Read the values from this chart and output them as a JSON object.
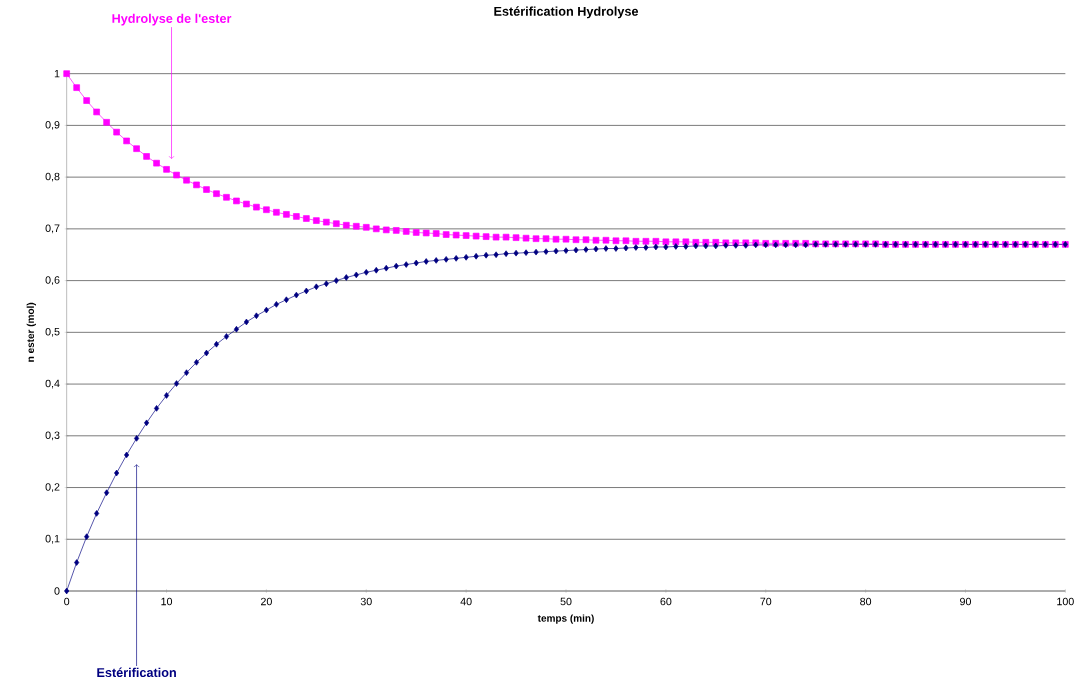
{
  "chart_data": {
    "type": "line",
    "title": "Estérification Hydrolyse",
    "xlabel": "temps (min)",
    "ylabel": "n ester (mol)",
    "x": [
      0,
      1,
      2,
      3,
      4,
      5,
      6,
      7,
      8,
      9,
      10,
      11,
      12,
      13,
      14,
      15,
      16,
      17,
      18,
      19,
      20,
      21,
      22,
      23,
      24,
      25,
      26,
      27,
      28,
      29,
      30,
      31,
      32,
      33,
      34,
      35,
      36,
      37,
      38,
      39,
      40,
      41,
      42,
      43,
      44,
      45,
      46,
      47,
      48,
      49,
      50,
      51,
      52,
      53,
      54,
      55,
      56,
      57,
      58,
      59,
      60,
      61,
      62,
      63,
      64,
      65,
      66,
      67,
      68,
      69,
      70,
      71,
      72,
      73,
      74,
      75,
      76,
      77,
      78,
      79,
      80,
      81,
      82,
      83,
      84,
      85,
      86,
      87,
      88,
      89,
      90,
      91,
      92,
      93,
      94,
      95,
      96,
      97,
      98,
      99,
      100
    ],
    "series": [
      {
        "name": "Hydrolyse de l'ester",
        "color": "#ff00ff",
        "marker": "square",
        "values": [
          1,
          0.973,
          0.948,
          0.926,
          0.906,
          0.887,
          0.87,
          0.855,
          0.84,
          0.827,
          0.815,
          0.804,
          0.794,
          0.785,
          0.776,
          0.768,
          0.761,
          0.754,
          0.748,
          0.742,
          0.737,
          0.732,
          0.728,
          0.724,
          0.72,
          0.716,
          0.713,
          0.71,
          0.707,
          0.705,
          0.703,
          0.7,
          0.698,
          0.697,
          0.695,
          0.693,
          0.692,
          0.691,
          0.689,
          0.688,
          0.687,
          0.686,
          0.685,
          0.684,
          0.684,
          0.683,
          0.682,
          0.681,
          0.681,
          0.68,
          0.68,
          0.679,
          0.679,
          0.678,
          0.678,
          0.677,
          0.677,
          0.676,
          0.676,
          0.676,
          0.675,
          0.675,
          0.675,
          0.674,
          0.674,
          0.674,
          0.673,
          0.673,
          0.673,
          0.673,
          0.672,
          0.672,
          0.672,
          0.672,
          0.672,
          0.671,
          0.671,
          0.671,
          0.671,
          0.671,
          0.671,
          0.671,
          0.67,
          0.67,
          0.67,
          0.67,
          0.67,
          0.67,
          0.67,
          0.67,
          0.67,
          0.67,
          0.67,
          0.67,
          0.67,
          0.67,
          0.67,
          0.67,
          0.67,
          0.67,
          0.67
        ]
      },
      {
        "name": "Estérification",
        "color": "#000080",
        "marker": "diamond",
        "values": [
          0,
          0.055,
          0.105,
          0.15,
          0.19,
          0.228,
          0.263,
          0.295,
          0.325,
          0.353,
          0.378,
          0.401,
          0.422,
          0.442,
          0.46,
          0.477,
          0.492,
          0.506,
          0.52,
          0.532,
          0.543,
          0.554,
          0.563,
          0.572,
          0.58,
          0.588,
          0.594,
          0.6,
          0.606,
          0.611,
          0.616,
          0.62,
          0.624,
          0.628,
          0.631,
          0.634,
          0.637,
          0.639,
          0.641,
          0.643,
          0.645,
          0.647,
          0.649,
          0.65,
          0.652,
          0.653,
          0.654,
          0.655,
          0.656,
          0.657,
          0.658,
          0.659,
          0.66,
          0.661,
          0.662,
          0.662,
          0.663,
          0.664,
          0.664,
          0.665,
          0.665,
          0.666,
          0.666,
          0.667,
          0.667,
          0.667,
          0.668,
          0.668,
          0.668,
          0.669,
          0.669,
          0.669,
          0.669,
          0.669,
          0.669,
          0.67,
          0.67,
          0.67,
          0.67,
          0.67,
          0.67,
          0.67,
          0.67,
          0.67,
          0.67,
          0.67,
          0.67,
          0.67,
          0.67,
          0.67,
          0.67,
          0.67,
          0.67,
          0.67,
          0.67,
          0.67,
          0.67,
          0.67,
          0.67,
          0.67,
          0.67
        ]
      }
    ],
    "xlim": [
      0,
      100
    ],
    "xticks": [
      0,
      10,
      20,
      30,
      40,
      50,
      60,
      70,
      80,
      90,
      100
    ],
    "ylim": [
      0,
      1
    ],
    "yticks": [
      0,
      {
        "value": 0.1,
        "label": "0,1"
      },
      {
        "value": 0.2,
        "label": "0,2"
      },
      {
        "value": 0.3,
        "label": "0,3"
      },
      {
        "value": 0.4,
        "label": "0,4"
      },
      {
        "value": 0.5,
        "label": "0,5"
      },
      {
        "value": 0.6,
        "label": "0,6"
      },
      {
        "value": 0.7,
        "label": "0,7"
      },
      {
        "value": 0.8,
        "label": "0,8"
      },
      {
        "value": 0.9,
        "label": "0,9"
      },
      1
    ],
    "grid": "y",
    "legend": false
  }
}
